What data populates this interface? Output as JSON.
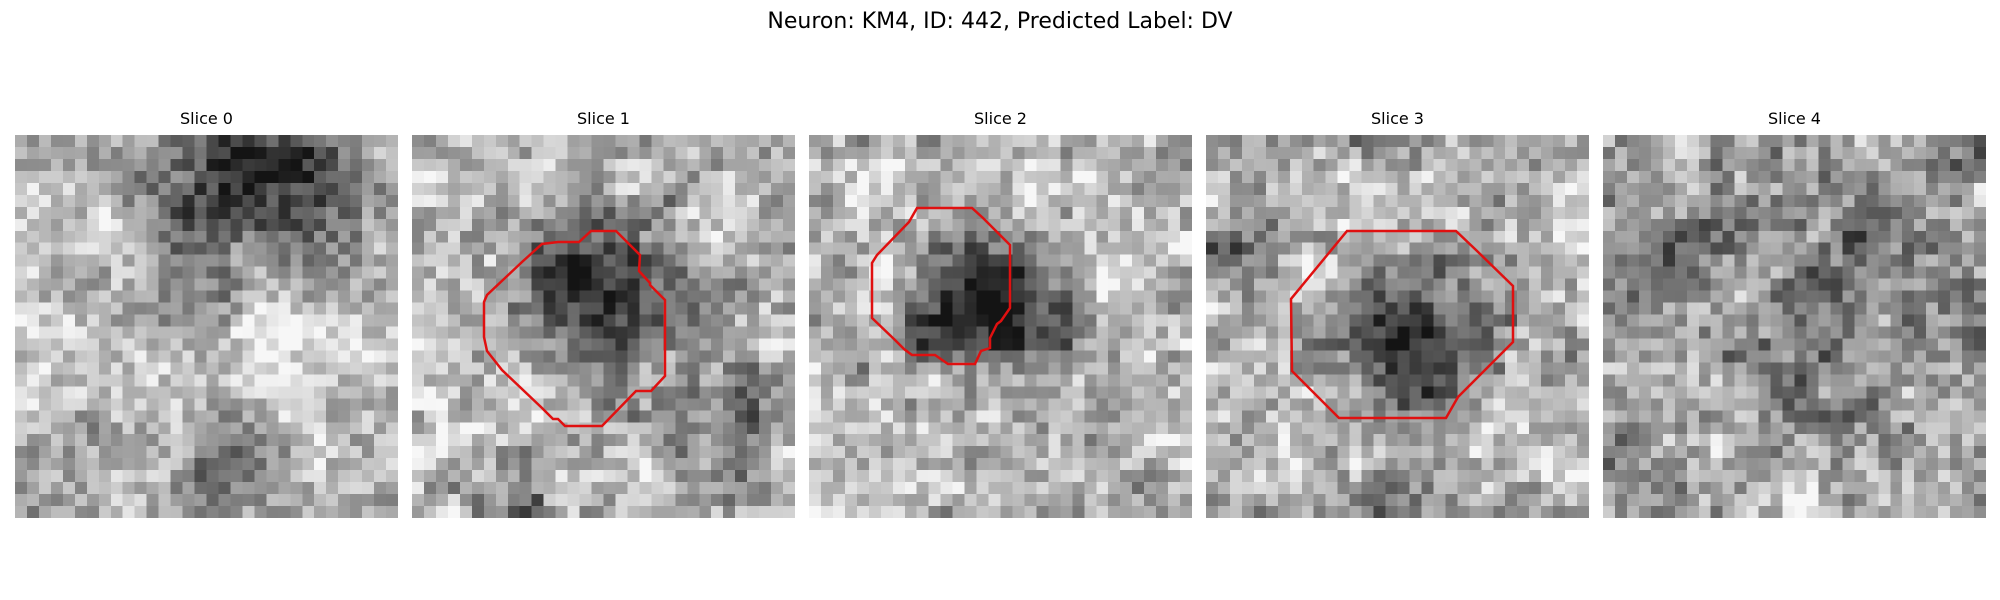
{
  "figure": {
    "title": "Neuron: KM4, ID: 442, Predicted Label: DV",
    "outline_color": "#e01010"
  },
  "slices": [
    {
      "title": "Slice 0",
      "has_outline": false
    },
    {
      "title": "Slice 1",
      "has_outline": true
    },
    {
      "title": "Slice 2",
      "has_outline": true
    },
    {
      "title": "Slice 3",
      "has_outline": true
    },
    {
      "title": "Slice 4",
      "has_outline": false
    }
  ]
}
